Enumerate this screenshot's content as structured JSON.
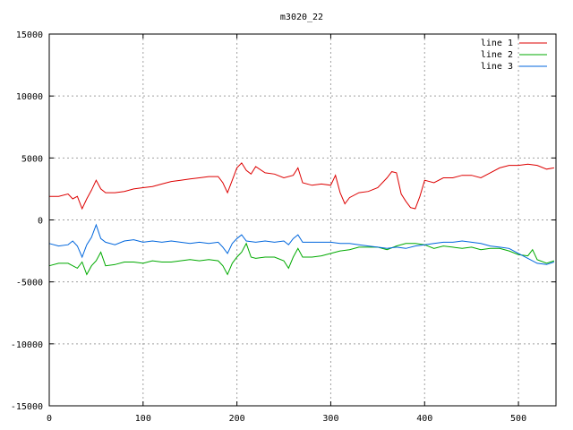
{
  "chart_data": {
    "type": "line",
    "title": "m3020_22",
    "xlabel": "",
    "ylabel": "",
    "xlim": [
      0,
      540
    ],
    "ylim": [
      -15000,
      15000
    ],
    "xticks": [
      0,
      100,
      200,
      300,
      400,
      500
    ],
    "yticks": [
      -15000,
      -10000,
      -5000,
      0,
      5000,
      10000,
      15000
    ],
    "grid": true,
    "legend_position": "top-right",
    "series": [
      {
        "name": "line 1",
        "color": "#dd0000",
        "points": [
          [
            0,
            1900
          ],
          [
            10,
            1900
          ],
          [
            20,
            2100
          ],
          [
            25,
            1700
          ],
          [
            30,
            1900
          ],
          [
            35,
            900
          ],
          [
            40,
            1700
          ],
          [
            45,
            2400
          ],
          [
            50,
            3200
          ],
          [
            55,
            2500
          ],
          [
            60,
            2200
          ],
          [
            70,
            2200
          ],
          [
            80,
            2300
          ],
          [
            90,
            2500
          ],
          [
            100,
            2600
          ],
          [
            110,
            2700
          ],
          [
            120,
            2900
          ],
          [
            130,
            3100
          ],
          [
            140,
            3200
          ],
          [
            150,
            3300
          ],
          [
            160,
            3400
          ],
          [
            170,
            3500
          ],
          [
            180,
            3500
          ],
          [
            185,
            3000
          ],
          [
            190,
            2200
          ],
          [
            195,
            3200
          ],
          [
            200,
            4200
          ],
          [
            205,
            4600
          ],
          [
            210,
            4000
          ],
          [
            215,
            3700
          ],
          [
            220,
            4300
          ],
          [
            230,
            3800
          ],
          [
            240,
            3700
          ],
          [
            250,
            3400
          ],
          [
            260,
            3600
          ],
          [
            265,
            4200
          ],
          [
            270,
            3000
          ],
          [
            280,
            2800
          ],
          [
            290,
            2900
          ],
          [
            300,
            2800
          ],
          [
            305,
            3600
          ],
          [
            310,
            2200
          ],
          [
            315,
            1300
          ],
          [
            320,
            1800
          ],
          [
            330,
            2200
          ],
          [
            340,
            2300
          ],
          [
            350,
            2600
          ],
          [
            360,
            3400
          ],
          [
            365,
            3900
          ],
          [
            370,
            3800
          ],
          [
            375,
            2100
          ],
          [
            380,
            1500
          ],
          [
            385,
            1000
          ],
          [
            390,
            900
          ],
          [
            395,
            1900
          ],
          [
            400,
            3200
          ],
          [
            410,
            3000
          ],
          [
            420,
            3400
          ],
          [
            430,
            3400
          ],
          [
            440,
            3600
          ],
          [
            450,
            3600
          ],
          [
            460,
            3400
          ],
          [
            470,
            3800
          ],
          [
            480,
            4200
          ],
          [
            490,
            4400
          ],
          [
            500,
            4400
          ],
          [
            510,
            4500
          ],
          [
            520,
            4400
          ],
          [
            530,
            4100
          ],
          [
            538,
            4200
          ]
        ]
      },
      {
        "name": "line 2",
        "color": "#00aa00",
        "points": [
          [
            0,
            -3700
          ],
          [
            10,
            -3500
          ],
          [
            20,
            -3500
          ],
          [
            30,
            -3900
          ],
          [
            35,
            -3400
          ],
          [
            40,
            -4400
          ],
          [
            45,
            -3700
          ],
          [
            50,
            -3300
          ],
          [
            55,
            -2600
          ],
          [
            60,
            -3700
          ],
          [
            70,
            -3600
          ],
          [
            80,
            -3400
          ],
          [
            90,
            -3400
          ],
          [
            100,
            -3500
          ],
          [
            110,
            -3300
          ],
          [
            120,
            -3400
          ],
          [
            130,
            -3400
          ],
          [
            140,
            -3300
          ],
          [
            150,
            -3200
          ],
          [
            160,
            -3300
          ],
          [
            170,
            -3200
          ],
          [
            180,
            -3300
          ],
          [
            185,
            -3700
          ],
          [
            190,
            -4400
          ],
          [
            195,
            -3500
          ],
          [
            200,
            -3000
          ],
          [
            205,
            -2600
          ],
          [
            210,
            -1900
          ],
          [
            215,
            -3000
          ],
          [
            220,
            -3100
          ],
          [
            230,
            -3000
          ],
          [
            240,
            -3000
          ],
          [
            250,
            -3300
          ],
          [
            255,
            -3900
          ],
          [
            260,
            -3000
          ],
          [
            265,
            -2300
          ],
          [
            270,
            -3000
          ],
          [
            280,
            -3000
          ],
          [
            290,
            -2900
          ],
          [
            300,
            -2700
          ],
          [
            310,
            -2500
          ],
          [
            320,
            -2400
          ],
          [
            330,
            -2200
          ],
          [
            340,
            -2200
          ],
          [
            350,
            -2200
          ],
          [
            360,
            -2400
          ],
          [
            370,
            -2100
          ],
          [
            380,
            -1900
          ],
          [
            390,
            -1900
          ],
          [
            400,
            -2000
          ],
          [
            410,
            -2300
          ],
          [
            420,
            -2100
          ],
          [
            430,
            -2200
          ],
          [
            440,
            -2300
          ],
          [
            450,
            -2200
          ],
          [
            460,
            -2400
          ],
          [
            470,
            -2300
          ],
          [
            480,
            -2300
          ],
          [
            490,
            -2500
          ],
          [
            500,
            -2800
          ],
          [
            510,
            -2900
          ],
          [
            515,
            -2400
          ],
          [
            520,
            -3200
          ],
          [
            530,
            -3500
          ],
          [
            538,
            -3300
          ]
        ]
      },
      {
        "name": "line 3",
        "color": "#0066dd",
        "points": [
          [
            0,
            -1900
          ],
          [
            10,
            -2100
          ],
          [
            20,
            -2000
          ],
          [
            25,
            -1700
          ],
          [
            30,
            -2100
          ],
          [
            35,
            -3000
          ],
          [
            40,
            -2000
          ],
          [
            45,
            -1400
          ],
          [
            50,
            -400
          ],
          [
            55,
            -1500
          ],
          [
            60,
            -1800
          ],
          [
            70,
            -2000
          ],
          [
            80,
            -1700
          ],
          [
            90,
            -1600
          ],
          [
            100,
            -1800
          ],
          [
            110,
            -1700
          ],
          [
            120,
            -1800
          ],
          [
            130,
            -1700
          ],
          [
            140,
            -1800
          ],
          [
            150,
            -1900
          ],
          [
            160,
            -1800
          ],
          [
            170,
            -1900
          ],
          [
            180,
            -1800
          ],
          [
            185,
            -2200
          ],
          [
            190,
            -2700
          ],
          [
            195,
            -1900
          ],
          [
            200,
            -1500
          ],
          [
            205,
            -1200
          ],
          [
            210,
            -1700
          ],
          [
            220,
            -1800
          ],
          [
            230,
            -1700
          ],
          [
            240,
            -1800
          ],
          [
            250,
            -1700
          ],
          [
            255,
            -2000
          ],
          [
            260,
            -1500
          ],
          [
            265,
            -1200
          ],
          [
            270,
            -1800
          ],
          [
            280,
            -1800
          ],
          [
            290,
            -1800
          ],
          [
            300,
            -1800
          ],
          [
            310,
            -1900
          ],
          [
            320,
            -1900
          ],
          [
            330,
            -2000
          ],
          [
            340,
            -2100
          ],
          [
            350,
            -2200
          ],
          [
            360,
            -2300
          ],
          [
            370,
            -2200
          ],
          [
            380,
            -2300
          ],
          [
            390,
            -2100
          ],
          [
            400,
            -2000
          ],
          [
            410,
            -1900
          ],
          [
            420,
            -1800
          ],
          [
            430,
            -1800
          ],
          [
            440,
            -1700
          ],
          [
            450,
            -1800
          ],
          [
            460,
            -1900
          ],
          [
            470,
            -2100
          ],
          [
            480,
            -2200
          ],
          [
            490,
            -2300
          ],
          [
            500,
            -2700
          ],
          [
            510,
            -3100
          ],
          [
            520,
            -3500
          ],
          [
            530,
            -3600
          ],
          [
            538,
            -3400
          ]
        ]
      }
    ]
  }
}
